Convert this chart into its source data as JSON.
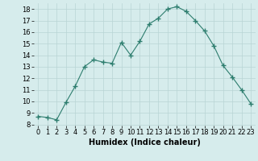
{
  "x": [
    0,
    1,
    2,
    3,
    4,
    5,
    6,
    7,
    8,
    9,
    10,
    11,
    12,
    13,
    14,
    15,
    16,
    17,
    18,
    19,
    20,
    21,
    22,
    23
  ],
  "y": [
    8.7,
    8.6,
    8.4,
    9.9,
    11.3,
    13.0,
    13.6,
    13.4,
    13.3,
    15.1,
    14.0,
    15.2,
    16.7,
    17.2,
    18.0,
    18.2,
    17.8,
    17.0,
    16.1,
    14.8,
    13.1,
    12.1,
    11.0,
    9.8
  ],
  "xlabel": "Humidex (Indice chaleur)",
  "xlim": [
    -0.5,
    23.5
  ],
  "ylim": [
    7.9,
    18.5
  ],
  "yticks": [
    8,
    9,
    10,
    11,
    12,
    13,
    14,
    15,
    16,
    17,
    18
  ],
  "xticks": [
    0,
    1,
    2,
    3,
    4,
    5,
    6,
    7,
    8,
    9,
    10,
    11,
    12,
    13,
    14,
    15,
    16,
    17,
    18,
    19,
    20,
    21,
    22,
    23
  ],
  "xtick_labels": [
    "0",
    "1",
    "2",
    "3",
    "4",
    "5",
    "6",
    "7",
    "8",
    "9",
    "10",
    "11",
    "12",
    "13",
    "14",
    "15",
    "16",
    "17",
    "18",
    "19",
    "20",
    "21",
    "22",
    "23"
  ],
  "line_color": "#2d7d6e",
  "marker": "+",
  "bg_color": "#d6ecec",
  "grid_color": "#b8d4d4",
  "label_fontsize": 7,
  "tick_fontsize": 6
}
